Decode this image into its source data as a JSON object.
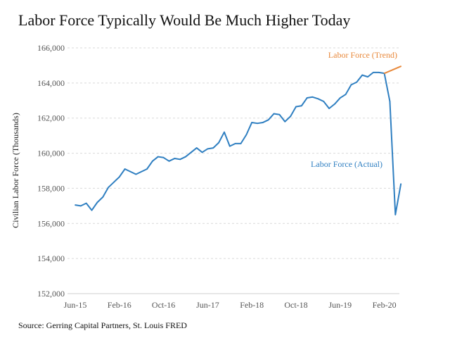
{
  "chart_data": {
    "type": "line",
    "title": "Labor Force Typically Would Be Much Higher Today",
    "xlabel": "",
    "ylabel": "Civilian Labor Force (Thousands)",
    "ylim": [
      152000,
      166000
    ],
    "y_ticks": [
      "152,000",
      "154,000",
      "156,000",
      "158,000",
      "160,000",
      "162,000",
      "164,000",
      "166,000"
    ],
    "x_tick_labels": [
      "Jun-15",
      "Feb-16",
      "Oct-16",
      "Jun-17",
      "Feb-18",
      "Oct-18",
      "Jun-19",
      "Feb-20"
    ],
    "grid": "horizontal dashed",
    "series": [
      {
        "name": "Labor Force (Actual)",
        "color": "#2f7fc1",
        "x": [
          "Jun-15",
          "Jul-15",
          "Aug-15",
          "Sep-15",
          "Oct-15",
          "Nov-15",
          "Dec-15",
          "Jan-16",
          "Feb-16",
          "Mar-16",
          "Apr-16",
          "May-16",
          "Jun-16",
          "Jul-16",
          "Aug-16",
          "Sep-16",
          "Oct-16",
          "Nov-16",
          "Dec-16",
          "Jan-17",
          "Feb-17",
          "Mar-17",
          "Apr-17",
          "May-17",
          "Jun-17",
          "Jul-17",
          "Aug-17",
          "Sep-17",
          "Oct-17",
          "Nov-17",
          "Dec-17",
          "Jan-18",
          "Feb-18",
          "Mar-18",
          "Apr-18",
          "May-18",
          "Jun-18",
          "Jul-18",
          "Aug-18",
          "Sep-18",
          "Oct-18",
          "Nov-18",
          "Dec-18",
          "Jan-19",
          "Feb-19",
          "Mar-19",
          "Apr-19",
          "May-19",
          "Jun-19",
          "Jul-19",
          "Aug-19",
          "Sep-19",
          "Oct-19",
          "Nov-19",
          "Dec-19",
          "Jan-20",
          "Feb-20",
          "Mar-20",
          "Apr-20",
          "May-20"
        ],
        "values": [
          157050,
          157000,
          157150,
          156750,
          157200,
          157500,
          158050,
          158350,
          158650,
          159100,
          158950,
          158800,
          158950,
          159100,
          159550,
          159800,
          159750,
          159550,
          159700,
          159650,
          159800,
          160050,
          160300,
          160050,
          160250,
          160300,
          160600,
          161200,
          160400,
          160550,
          160550,
          161050,
          161750,
          161700,
          161750,
          161900,
          162250,
          162200,
          161800,
          162100,
          162650,
          162700,
          163150,
          163200,
          163100,
          162950,
          162550,
          162800,
          163150,
          163350,
          163900,
          164050,
          164450,
          164350,
          164600,
          164600,
          164550,
          162950,
          156500,
          158250
        ]
      },
      {
        "name": "Labor Force (Trend)",
        "color": "#e8883a",
        "x": [
          "Feb-20",
          "May-20"
        ],
        "values": [
          164550,
          164950
        ]
      }
    ],
    "annotations": [
      "Labor Force (Trend)",
      "Labor Force (Actual)"
    ]
  },
  "source": "Source: Gerring Capital Partners, St. Louis FRED"
}
